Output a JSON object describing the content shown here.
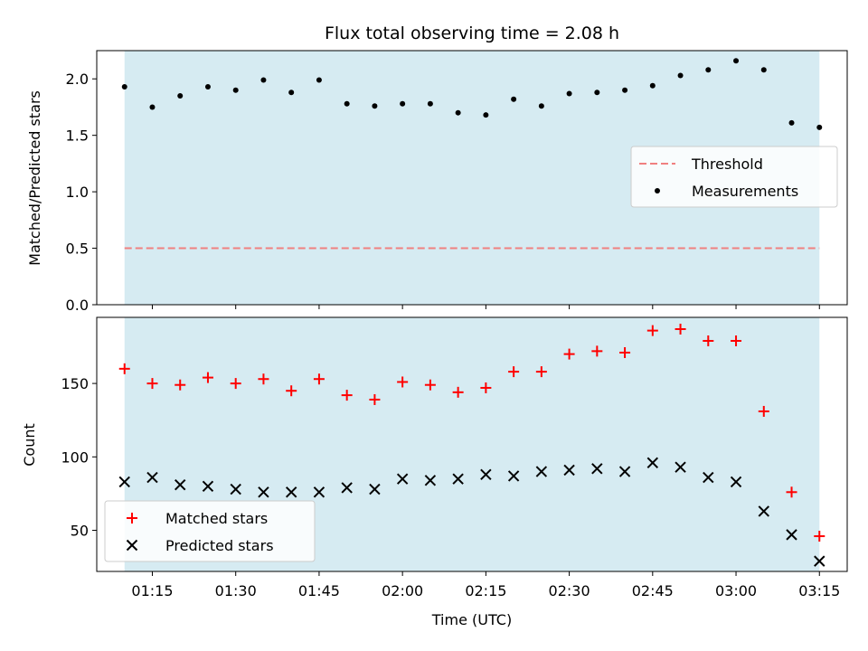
{
  "chart_data": [
    {
      "type": "scatter",
      "title": "Flux total observing time = 2.08 h",
      "xlabel": "",
      "ylabel": "Matched/Predicted stars",
      "ylim": [
        0,
        2.25
      ],
      "yticks": [
        "0.0",
        "0.5",
        "1.0",
        "1.5",
        "2.0"
      ],
      "shaded_span": [
        "01:10",
        "03:15"
      ],
      "shade_color": "#add8e6",
      "threshold": {
        "name": "Threshold",
        "value": 0.5,
        "color": "#f08080",
        "style": "dashed",
        "x": [
          "01:10",
          "03:15"
        ]
      },
      "series": [
        {
          "name": "Measurements",
          "marker": "dot",
          "color": "#000000",
          "x": [
            "01:10",
            "01:15",
            "01:20",
            "01:25",
            "01:30",
            "01:35",
            "01:40",
            "01:45",
            "01:50",
            "01:55",
            "02:00",
            "02:05",
            "02:10",
            "02:15",
            "02:20",
            "02:25",
            "02:30",
            "02:35",
            "02:40",
            "02:45",
            "02:50",
            "02:55",
            "03:00",
            "03:05",
            "03:10",
            "03:15"
          ],
          "values": [
            1.93,
            1.75,
            1.85,
            1.93,
            1.9,
            1.99,
            1.88,
            1.99,
            1.78,
            1.76,
            1.78,
            1.78,
            1.7,
            1.68,
            1.82,
            1.76,
            1.87,
            1.88,
            1.9,
            1.94,
            2.03,
            2.08,
            2.16,
            2.08,
            1.61,
            1.57
          ]
        }
      ],
      "legend": {
        "position": "right",
        "entries": [
          "Threshold",
          "Measurements"
        ]
      },
      "grid": false
    },
    {
      "type": "scatter",
      "title": "",
      "xlabel": "Time (UTC)",
      "ylabel": "Count",
      "ylim": [
        22,
        195
      ],
      "yticks": [
        "50",
        "100",
        "150"
      ],
      "xlim": [
        "01:05",
        "03:20"
      ],
      "xticks": [
        "01:15",
        "01:30",
        "01:45",
        "02:00",
        "02:15",
        "02:30",
        "02:45",
        "03:00",
        "03:15"
      ],
      "shaded_span": [
        "01:10",
        "03:15"
      ],
      "shade_color": "#add8e6",
      "series": [
        {
          "name": "Matched stars",
          "marker": "plus",
          "color": "#ff0000",
          "x": [
            "01:10",
            "01:15",
            "01:20",
            "01:25",
            "01:30",
            "01:35",
            "01:40",
            "01:45",
            "01:50",
            "01:55",
            "02:00",
            "02:05",
            "02:10",
            "02:15",
            "02:20",
            "02:25",
            "02:30",
            "02:35",
            "02:40",
            "02:45",
            "02:50",
            "02:55",
            "03:00",
            "03:05",
            "03:10",
            "03:15"
          ],
          "values": [
            160,
            150,
            149,
            154,
            150,
            153,
            145,
            153,
            142,
            139,
            151,
            149,
            144,
            147,
            158,
            158,
            170,
            172,
            171,
            186,
            187,
            179,
            179,
            131,
            76,
            46
          ]
        },
        {
          "name": "Predicted stars",
          "marker": "cross",
          "color": "#000000",
          "x": [
            "01:10",
            "01:15",
            "01:20",
            "01:25",
            "01:30",
            "01:35",
            "01:40",
            "01:45",
            "01:50",
            "01:55",
            "02:00",
            "02:05",
            "02:10",
            "02:15",
            "02:20",
            "02:25",
            "02:30",
            "02:35",
            "02:40",
            "02:45",
            "02:50",
            "02:55",
            "03:00",
            "03:05",
            "03:10",
            "03:15"
          ],
          "values": [
            83,
            86,
            81,
            80,
            78,
            76,
            76,
            76,
            79,
            78,
            85,
            84,
            85,
            88,
            87,
            90,
            91,
            92,
            90,
            96,
            93,
            86,
            83,
            63,
            47,
            29
          ]
        }
      ],
      "legend": {
        "position": "lower-left",
        "entries": [
          "Matched stars",
          "Predicted stars"
        ]
      },
      "grid": false
    }
  ]
}
